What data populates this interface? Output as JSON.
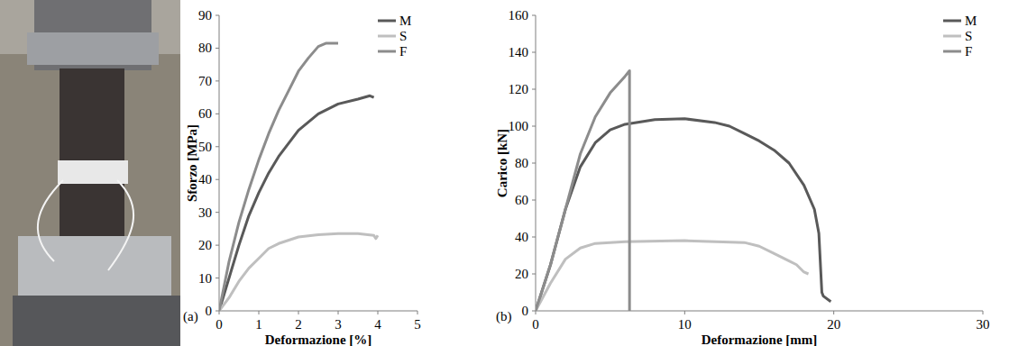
{
  "chart_data": [
    {
      "type": "line",
      "panel_label": "(a)",
      "x_label": "Deformazione [%]",
      "y_label": "Sforzo [MPa]",
      "xlim": [
        0,
        5
      ],
      "xticks": [
        0,
        1,
        2,
        3,
        4,
        5
      ],
      "ylim": [
        0,
        90
      ],
      "yticks": [
        0,
        10,
        20,
        30,
        40,
        50,
        60,
        70,
        80,
        90
      ],
      "grid": false,
      "legend": "top-right",
      "series": [
        {
          "name": "M",
          "color": "#595959",
          "x": [
            0,
            0.25,
            0.5,
            0.75,
            1,
            1.25,
            1.5,
            1.75,
            2,
            2.5,
            3,
            3.5,
            3.8,
            3.9
          ],
          "values": [
            0,
            10,
            20,
            29,
            36,
            42,
            47,
            51,
            55,
            60,
            63,
            64.5,
            65.5,
            65
          ]
        },
        {
          "name": "S",
          "color": "#bfbfbf",
          "x": [
            0,
            0.25,
            0.5,
            0.75,
            1,
            1.25,
            1.5,
            2,
            2.5,
            3,
            3.5,
            3.9,
            3.95,
            4
          ],
          "values": [
            0,
            4,
            9,
            13,
            16,
            19,
            20.5,
            22.5,
            23.2,
            23.5,
            23.5,
            23,
            22,
            23
          ]
        },
        {
          "name": "F",
          "color": "#8c8c8c",
          "x": [
            0,
            0.25,
            0.5,
            0.75,
            1,
            1.25,
            1.5,
            1.75,
            2,
            2.25,
            2.5,
            2.7,
            3
          ],
          "values": [
            0,
            15,
            27,
            37,
            46,
            54,
            61,
            67,
            73,
            77,
            80.5,
            81.5,
            81.5
          ]
        }
      ]
    },
    {
      "type": "line",
      "panel_label": "(b)",
      "x_label": "Deformazione [mm]",
      "y_label": "Carico [kN]",
      "xlim": [
        0,
        30
      ],
      "xticks": [
        0,
        10,
        20,
        30
      ],
      "ylim": [
        0,
        160
      ],
      "yticks": [
        0,
        20,
        40,
        60,
        80,
        100,
        120,
        140,
        160
      ],
      "grid": false,
      "legend": "top-right",
      "series": [
        {
          "name": "M",
          "color": "#595959",
          "x": [
            0,
            1,
            2,
            3,
            4,
            5,
            6,
            8,
            10,
            12,
            13,
            14,
            15,
            16,
            17,
            18,
            18.7,
            19,
            19.2,
            19.3,
            19.8
          ],
          "values": [
            0,
            25,
            55,
            78,
            91,
            98,
            101,
            103.5,
            104,
            102,
            100,
            96,
            92,
            87,
            80,
            68,
            55,
            42,
            10,
            8,
            5
          ]
        },
        {
          "name": "S",
          "color": "#bfbfbf",
          "x": [
            0,
            1,
            2,
            3,
            4,
            6,
            10,
            14,
            15,
            16,
            17,
            17.5,
            18,
            18.3
          ],
          "values": [
            0,
            15,
            28,
            34,
            36.5,
            37.5,
            38,
            37,
            35,
            31,
            27,
            25,
            21,
            20
          ]
        },
        {
          "name": "F",
          "color": "#8c8c8c",
          "x": [
            0,
            1,
            2,
            3,
            4,
            5,
            6,
            6.3,
            6.3
          ],
          "values": [
            0,
            25,
            55,
            85,
            105,
            118,
            127,
            130,
            0
          ]
        }
      ]
    }
  ]
}
